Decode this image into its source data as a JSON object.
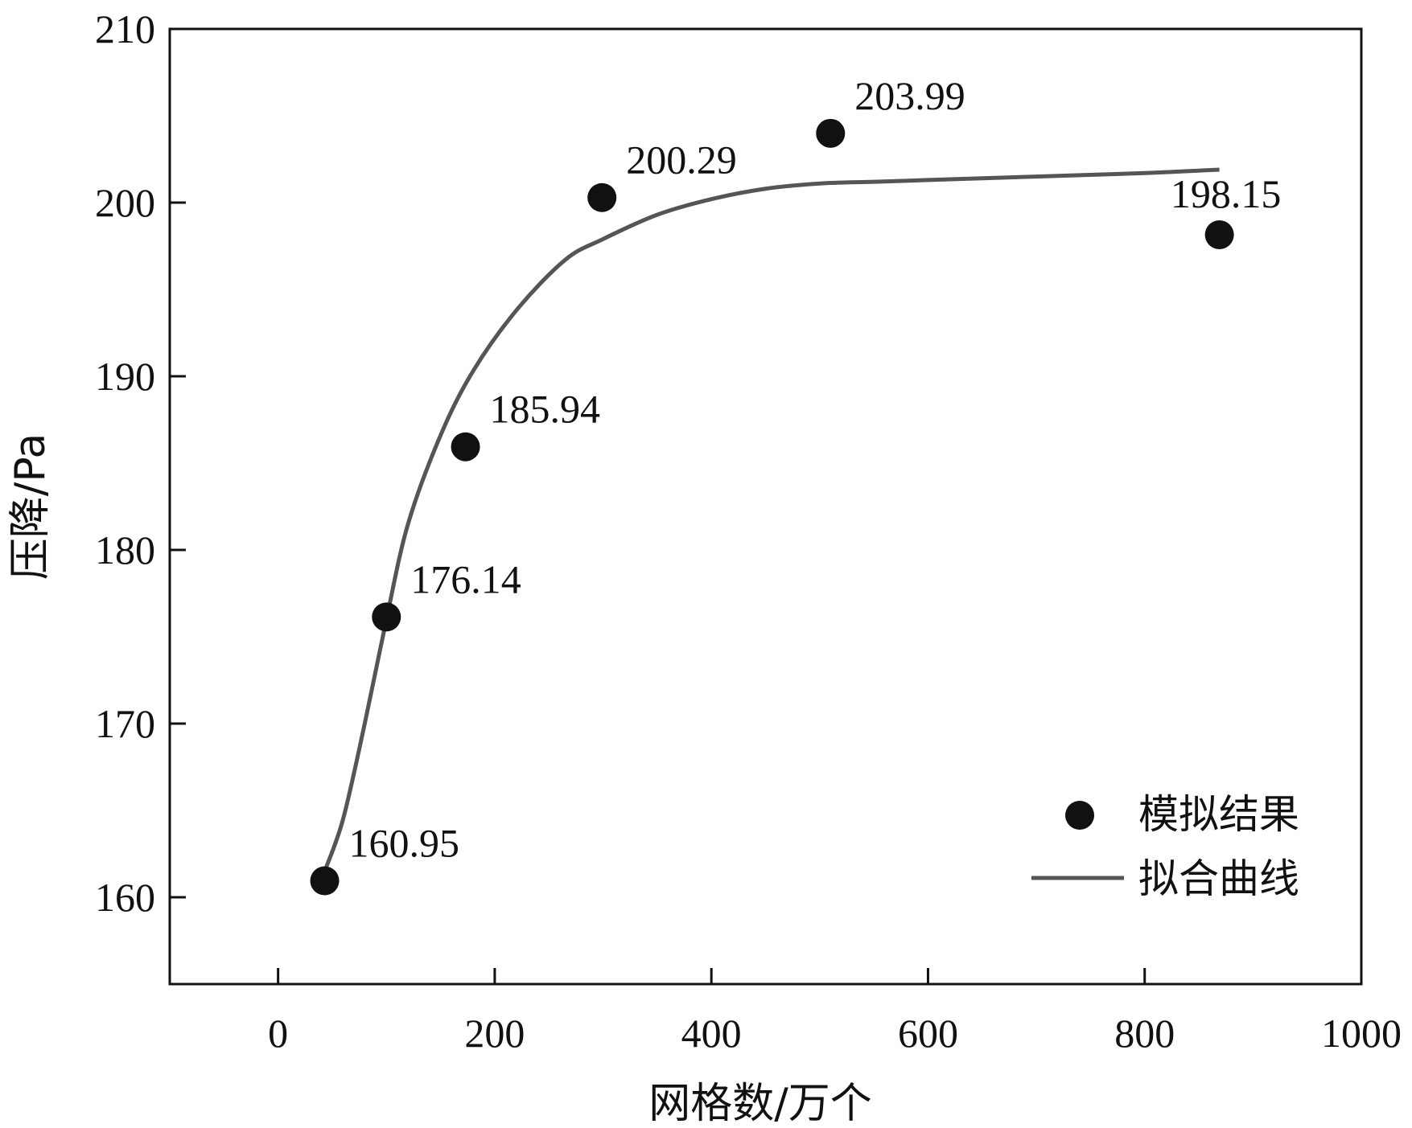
{
  "chart_data": {
    "type": "scatter",
    "title": "",
    "xlabel": "网格数/万个",
    "ylabel": "压降/Pa",
    "xlim": [
      -100,
      1000
    ],
    "ylim": [
      155,
      210
    ],
    "xticks": [
      0,
      200,
      400,
      600,
      800,
      1000
    ],
    "yticks": [
      160,
      170,
      180,
      190,
      200,
      210
    ],
    "grid": false,
    "legend_position": "bottom-right",
    "series": [
      {
        "name": "模拟结果",
        "kind": "scatter",
        "color": "#111111",
        "x": [
          43,
          100,
          173,
          299,
          510,
          869
        ],
        "y": [
          160.95,
          176.14,
          185.94,
          200.29,
          203.99,
          198.15
        ],
        "labels": [
          "160.95",
          "176.14",
          "185.94",
          "200.29",
          "203.99",
          "198.15"
        ]
      },
      {
        "name": "拟合曲线",
        "kind": "line",
        "color": "#555555",
        "x": [
          43,
          60,
          80,
          100,
          120,
          150,
          180,
          220,
          265,
          300,
          350,
          400,
          450,
          500,
          550,
          600,
          700,
          800,
          869
        ],
        "y": [
          161.5,
          164.5,
          170.0,
          176.0,
          181.5,
          186.6,
          190.3,
          193.8,
          196.7,
          197.9,
          199.3,
          200.2,
          200.8,
          201.1,
          201.2,
          201.3,
          201.5,
          201.7,
          201.9
        ]
      }
    ]
  }
}
